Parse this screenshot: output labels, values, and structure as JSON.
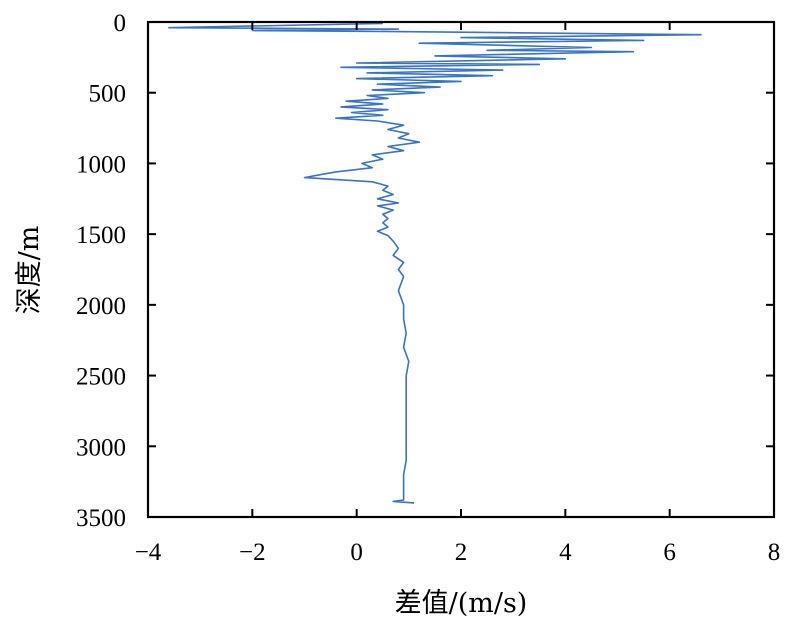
{
  "chart_data": {
    "type": "line",
    "title": "",
    "xlabel": "差值/(m/s)",
    "ylabel": "深度/m",
    "xlim": [
      -4,
      8
    ],
    "ylim": [
      0,
      3500
    ],
    "y_inverted": true,
    "grid": false,
    "x_ticks": [
      -4,
      -2,
      0,
      2,
      4,
      6,
      8
    ],
    "x_tick_labels": [
      "−4",
      "−2",
      "0",
      "2",
      "4",
      "6",
      "8"
    ],
    "y_ticks": [
      0,
      500,
      1000,
      1500,
      2000,
      2500,
      3000,
      3500
    ],
    "y_tick_labels": [
      "0",
      "500",
      "1000",
      "1500",
      "2000",
      "2500",
      "3000",
      "3500"
    ],
    "line_color": "#3a72c4",
    "series": [
      {
        "points": [
          [
            0.5,
            10
          ],
          [
            -3.6,
            40
          ],
          [
            0.8,
            50
          ],
          [
            -2.0,
            60
          ],
          [
            1.5,
            70
          ],
          [
            6.6,
            90
          ],
          [
            2.0,
            110
          ],
          [
            5.5,
            130
          ],
          [
            1.2,
            150
          ],
          [
            4.5,
            180
          ],
          [
            2.5,
            200
          ],
          [
            5.3,
            210
          ],
          [
            1.5,
            240
          ],
          [
            4.0,
            260
          ],
          [
            0.0,
            290
          ],
          [
            3.5,
            300
          ],
          [
            -0.3,
            320
          ],
          [
            2.8,
            340
          ],
          [
            0.2,
            360
          ],
          [
            2.6,
            380
          ],
          [
            0.0,
            400
          ],
          [
            2.0,
            420
          ],
          [
            0.4,
            440
          ],
          [
            1.6,
            460
          ],
          [
            0.3,
            480
          ],
          [
            1.3,
            500
          ],
          [
            0.2,
            520
          ],
          [
            0.6,
            540
          ],
          [
            -0.2,
            560
          ],
          [
            0.5,
            580
          ],
          [
            -0.3,
            600
          ],
          [
            0.6,
            620
          ],
          [
            -0.1,
            640
          ],
          [
            0.5,
            660
          ],
          [
            -0.4,
            680
          ],
          [
            0.4,
            700
          ],
          [
            0.9,
            730
          ],
          [
            0.6,
            760
          ],
          [
            1.0,
            790
          ],
          [
            0.8,
            820
          ],
          [
            1.2,
            850
          ],
          [
            0.6,
            880
          ],
          [
            0.9,
            910
          ],
          [
            0.3,
            940
          ],
          [
            0.5,
            970
          ],
          [
            0.1,
            1000
          ],
          [
            0.3,
            1030
          ],
          [
            -0.4,
            1060
          ],
          [
            -0.7,
            1080
          ],
          [
            -1.0,
            1100
          ],
          [
            0.3,
            1130
          ],
          [
            0.6,
            1160
          ],
          [
            0.5,
            1190
          ],
          [
            0.7,
            1220
          ],
          [
            0.4,
            1250
          ],
          [
            0.8,
            1280
          ],
          [
            0.4,
            1300
          ],
          [
            0.7,
            1330
          ],
          [
            0.5,
            1360
          ],
          [
            0.6,
            1390
          ],
          [
            0.5,
            1420
          ],
          [
            0.6,
            1450
          ],
          [
            0.4,
            1480
          ],
          [
            0.6,
            1510
          ],
          [
            0.7,
            1550
          ],
          [
            0.8,
            1600
          ],
          [
            0.7,
            1650
          ],
          [
            0.9,
            1700
          ],
          [
            0.8,
            1750
          ],
          [
            0.9,
            1800
          ],
          [
            0.8,
            1900
          ],
          [
            0.9,
            2000
          ],
          [
            0.9,
            2100
          ],
          [
            0.95,
            2200
          ],
          [
            0.9,
            2300
          ],
          [
            1.0,
            2400
          ],
          [
            0.95,
            2500
          ],
          [
            0.95,
            2600
          ],
          [
            0.95,
            2700
          ],
          [
            0.95,
            2800
          ],
          [
            0.95,
            2900
          ],
          [
            0.95,
            3000
          ],
          [
            0.95,
            3100
          ],
          [
            0.9,
            3200
          ],
          [
            0.9,
            3300
          ],
          [
            0.9,
            3380
          ],
          [
            0.7,
            3390
          ],
          [
            1.1,
            3400
          ]
        ]
      }
    ]
  }
}
